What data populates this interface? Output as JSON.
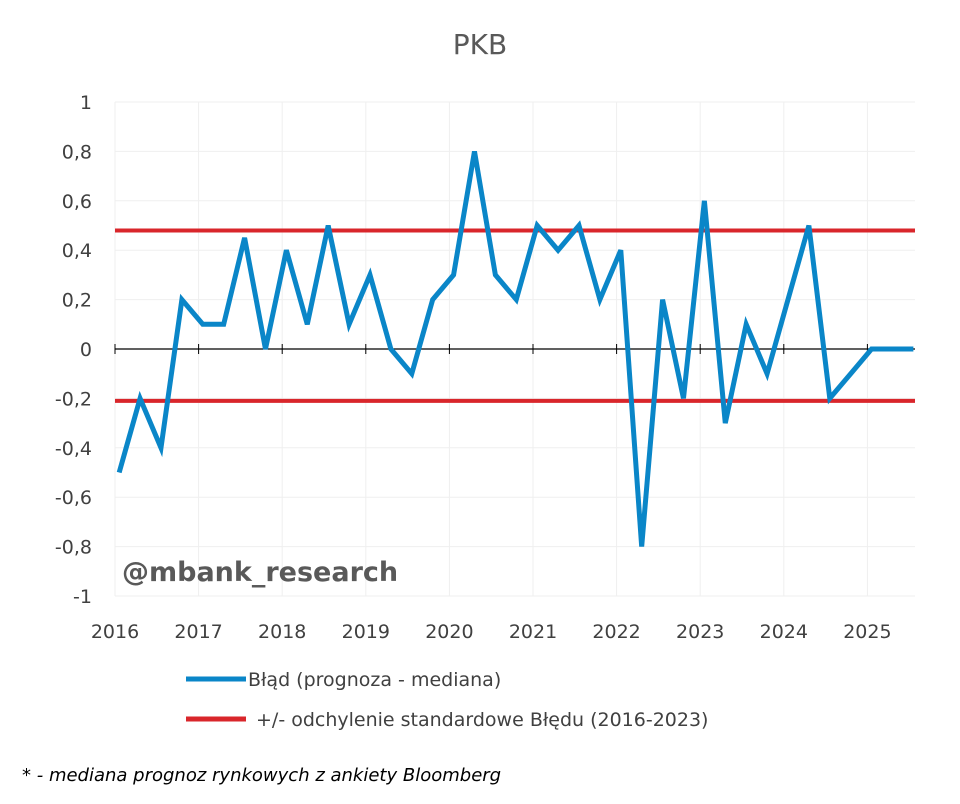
{
  "chart_data": {
    "type": "line",
    "title": "PKB",
    "xlabel": "",
    "ylabel": "",
    "ylim": [
      -1,
      1
    ],
    "yticks": [
      "-1",
      "-0,8",
      "-0,6",
      "-0,4",
      "-0,2",
      "0",
      "0,2",
      "0,4",
      "0,6",
      "0,8",
      "1"
    ],
    "ytick_values": [
      -1,
      -0.8,
      -0.6,
      -0.4,
      -0.2,
      0,
      0.2,
      0.4,
      0.6,
      0.8,
      1
    ],
    "xticks": [
      "2016",
      "2017",
      "2018",
      "2019",
      "2020",
      "2021",
      "2022",
      "2023",
      "2024",
      "2025"
    ],
    "xlim": [
      2016,
      2025.6
    ],
    "grid": true,
    "legend_position": "bottom",
    "series": [
      {
        "name": "Błąd (prognoza - mediana)",
        "color": "#0A86C8",
        "x_start": 2016.05,
        "x_step": 0.25,
        "values": [
          -0.5,
          -0.2,
          -0.4,
          0.2,
          0.1,
          0.1,
          0.45,
          0,
          0.4,
          0.1,
          0.5,
          0.1,
          0.3,
          0,
          -0.1,
          0.2,
          0.3,
          0.8,
          0.3,
          0.2,
          0.5,
          0.4,
          0.5,
          0.2,
          0.4,
          -0.8,
          0.2,
          -0.2,
          0.6,
          -0.3,
          0.1,
          -0.1,
          0.2,
          0.5,
          -0.2,
          -0.1,
          0,
          0,
          0
        ]
      },
      {
        "name": "+/- odchylenie standardowe Błędu (2016-2023)",
        "color": "#D9262B",
        "upper": 0.48,
        "lower": -0.21
      }
    ],
    "watermark": "@mbank_research",
    "footnote": "* - mediana prognoz rynkowych z ankiety Bloomberg"
  }
}
